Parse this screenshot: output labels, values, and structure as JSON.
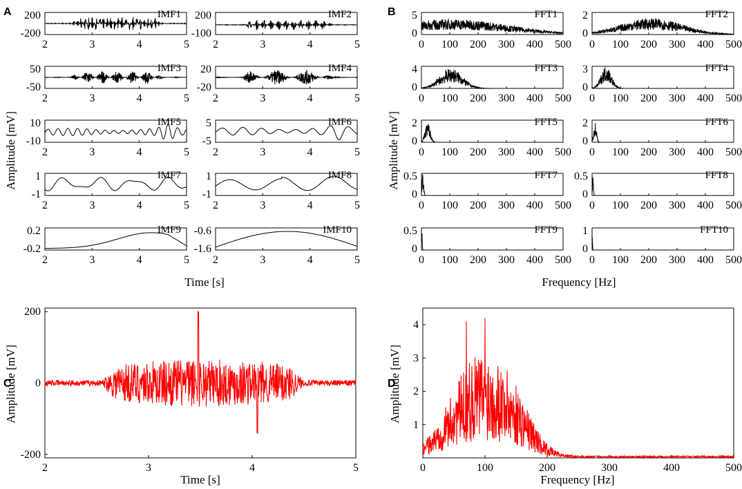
{
  "colors": {
    "black": "#000000",
    "red": "#ff0000"
  },
  "panel_letters": {
    "A": "A",
    "B": "B",
    "C": "C",
    "D": "D"
  },
  "panelA": {
    "xlabel": "Time [s]",
    "ylabel": "Amplitude [mV]",
    "x_ticks": [
      "2",
      "3",
      "4",
      "5"
    ]
  },
  "panelB": {
    "xlabel": "Frequency [Hz]",
    "ylabel": "Amplitude [mV]",
    "x_ticks": [
      "0",
      "100",
      "200",
      "300",
      "400",
      "500"
    ]
  },
  "chart_data": [
    {
      "panel": "A",
      "type": "line",
      "xlabel": "Time [s]",
      "ylabel": "Amplitude [mV]",
      "xlim": [
        2,
        5
      ],
      "subplots": [
        {
          "name": "IMF1",
          "y_ticks": [
            "200",
            "-200"
          ],
          "ylim": [
            -300,
            300
          ],
          "signal": "burst",
          "amp": 180,
          "freq": 80
        },
        {
          "name": "IMF2",
          "y_ticks": [
            "200",
            "-100"
          ],
          "ylim": [
            -220,
            280
          ],
          "signal": "burst",
          "amp": 120,
          "freq": 40
        },
        {
          "name": "IMF3",
          "y_ticks": [
            "50",
            "-50"
          ],
          "ylim": [
            -75,
            75
          ],
          "signal": "burst",
          "amp": 45,
          "freq": 20
        },
        {
          "name": "IMF4",
          "y_ticks": [
            "20",
            "-20"
          ],
          "ylim": [
            -30,
            30
          ],
          "signal": "burst",
          "amp": 20,
          "freq": 10
        },
        {
          "name": "IMF5",
          "y_ticks": [
            "10",
            "-10"
          ],
          "ylim": [
            -14,
            16
          ],
          "signal": "osc",
          "amp": 5,
          "freq": 5
        },
        {
          "name": "IMF6",
          "y_ticks": [
            "5",
            "-5"
          ],
          "ylim": [
            -7,
            7
          ],
          "signal": "osc",
          "amp": 2.5,
          "freq": 2.5
        },
        {
          "name": "IMF7",
          "y_ticks": [
            "1",
            "-1"
          ],
          "ylim": [
            -1.2,
            1.3
          ],
          "signal": "imf7"
        },
        {
          "name": "IMF8",
          "y_ticks": [
            "1",
            "-1"
          ],
          "ylim": [
            -1.3,
            1.3
          ],
          "signal": "imf8"
        },
        {
          "name": "IMF9",
          "y_ticks": [
            "0.2",
            "-0.2"
          ],
          "ylim": [
            -0.24,
            0.32
          ],
          "signal": "imf9"
        },
        {
          "name": "IMF10",
          "y_ticks": [
            "-0.6",
            "-1.6"
          ],
          "ylim": [
            -1.72,
            -0.45
          ],
          "signal": "imf10"
        }
      ]
    },
    {
      "panel": "B",
      "type": "line",
      "xlabel": "Frequency [Hz]",
      "ylabel": "Amplitude [mV]",
      "xlim": [
        0,
        500
      ],
      "subplots": [
        {
          "name": "FFT1",
          "y_ticks": [
            "5",
            "0"
          ],
          "ylim": [
            0,
            5.5
          ],
          "peak_hz": 110,
          "width_hz": 200,
          "amp": 3.2
        },
        {
          "name": "FFT2",
          "y_ticks": [
            "2",
            "0"
          ],
          "ylim": [
            0,
            2.6
          ],
          "peak_hz": 210,
          "width_hz": 110,
          "amp": 1.6
        },
        {
          "name": "FFT3",
          "y_ticks": [
            "4",
            "0"
          ],
          "ylim": [
            0,
            4.6
          ],
          "peak_hz": 105,
          "width_hz": 40,
          "amp": 3.5
        },
        {
          "name": "FFT4",
          "y_ticks": [
            "3",
            "0"
          ],
          "ylim": [
            0,
            3.4
          ],
          "peak_hz": 50,
          "width_hz": 18,
          "amp": 2.9
        },
        {
          "name": "FFT5",
          "y_ticks": [
            "2",
            "0"
          ],
          "ylim": [
            0,
            2.6
          ],
          "peak_hz": 22,
          "width_hz": 9,
          "amp": 2.0
        },
        {
          "name": "FFT6",
          "y_ticks": [
            "2",
            "0"
          ],
          "ylim": [
            0,
            2.6
          ],
          "peak_hz": 11,
          "width_hz": 5,
          "amp": 2.0
        },
        {
          "name": "FFT7",
          "y_ticks": [
            "0.5",
            "0"
          ],
          "ylim": [
            0,
            0.6
          ],
          "peak_hz": 5,
          "width_hz": 3,
          "amp": 0.5
        },
        {
          "name": "FFT8",
          "y_ticks": [
            "0.5",
            "0"
          ],
          "ylim": [
            0,
            0.6
          ],
          "peak_hz": 3,
          "width_hz": 2,
          "amp": 0.55
        },
        {
          "name": "FFT9",
          "y_ticks": [
            "0.5",
            "0"
          ],
          "ylim": [
            0,
            0.6
          ],
          "peak_hz": 1,
          "width_hz": 1.5,
          "amp": 0.5
        },
        {
          "name": "FFT10",
          "y_ticks": [
            "1",
            "0"
          ],
          "ylim": [
            0,
            1.2
          ],
          "peak_hz": 0.5,
          "width_hz": 1,
          "amp": 1.0
        }
      ]
    },
    {
      "panel": "C",
      "type": "line",
      "xlabel": "Time [s]",
      "ylabel": "Amplitude [mV]",
      "xlim": [
        2,
        5
      ],
      "ylim": [
        -210,
        210
      ],
      "x_ticks": [
        "2",
        "3",
        "4",
        "5"
      ],
      "y_ticks": [
        "200",
        "0",
        "-200"
      ],
      "series": [
        {
          "name": "signal",
          "color": "#ff0000",
          "burst_start_s": 2.55,
          "burst_end_s": 4.5,
          "peak_mv": 200,
          "min_mv": -140
        }
      ]
    },
    {
      "panel": "D",
      "type": "line",
      "xlabel": "Frequency [Hz]",
      "ylabel": "Amplitude [mV]",
      "xlim": [
        0,
        500
      ],
      "ylim": [
        0,
        4.5
      ],
      "x_ticks": [
        "0",
        "100",
        "200",
        "300",
        "400",
        "500"
      ],
      "y_ticks": [
        "4",
        "3",
        "2",
        "1"
      ],
      "series": [
        {
          "name": "spectrum",
          "color": "#ff0000",
          "peak_hz": 100,
          "peak_mv": 4.2,
          "envelope_center_hz": 90,
          "envelope_mv": 1.9
        }
      ]
    }
  ]
}
